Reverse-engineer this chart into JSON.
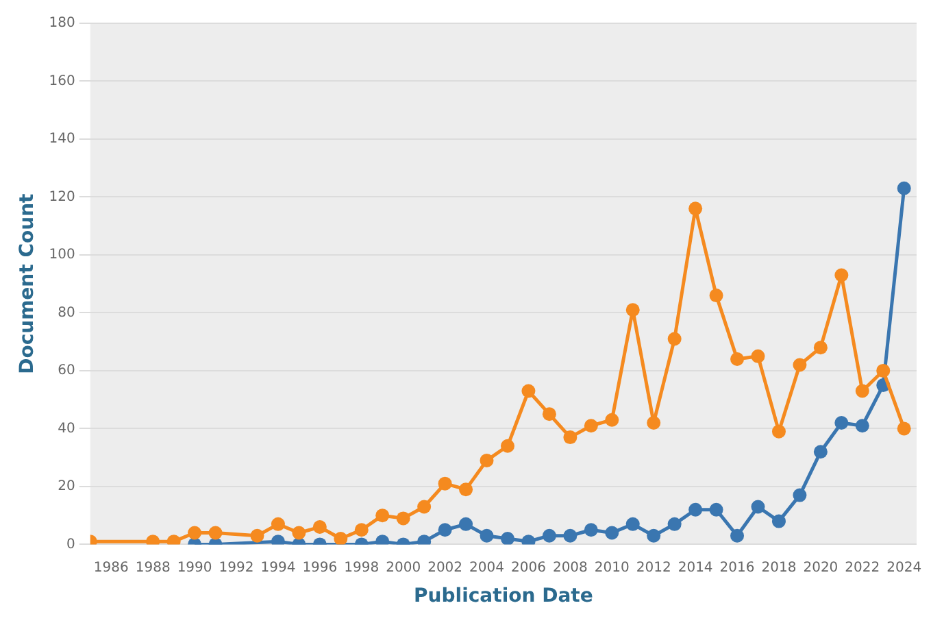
{
  "chart_data": {
    "type": "line",
    "xlabel": "Publication Date",
    "ylabel": "Document Count",
    "xlim": [
      1985,
      2024.6
    ],
    "xticks": [
      1986,
      1988,
      1990,
      1992,
      1994,
      1996,
      1998,
      2000,
      2002,
      2004,
      2006,
      2008,
      2010,
      2012,
      2014,
      2016,
      2018,
      2020,
      2022,
      2024
    ],
    "ylim": [
      0,
      180
    ],
    "yticks": [
      0,
      20,
      40,
      60,
      80,
      100,
      120,
      140,
      160,
      180
    ],
    "grid": "y",
    "legend": false,
    "marker": "circle",
    "line_style": "solid",
    "series": [
      {
        "color": "#f58a1f",
        "x": [
          1985,
          1988,
          1989,
          1990,
          1991,
          1993,
          1994,
          1995,
          1996,
          1997,
          1998,
          1999,
          2000,
          2001,
          2002,
          2003,
          2004,
          2005,
          2006,
          2007,
          2008,
          2009,
          2010,
          2011,
          2012,
          2013,
          2014,
          2015,
          2016,
          2017,
          2018,
          2019,
          2020,
          2021,
          2022,
          2023,
          2024
        ],
        "values": [
          1,
          1,
          1,
          4,
          4,
          3,
          7,
          4,
          6,
          2,
          5,
          10,
          9,
          13,
          21,
          19,
          29,
          34,
          53,
          45,
          37,
          41,
          43,
          81,
          42,
          71,
          116,
          86,
          64,
          65,
          39,
          62,
          68,
          93,
          53,
          60,
          40
        ]
      },
      {
        "color": "#3a76b0",
        "x": [
          1990,
          1991,
          1994,
          1995,
          1996,
          1998,
          1999,
          2000,
          2001,
          2002,
          2003,
          2004,
          2005,
          2006,
          2007,
          2008,
          2009,
          2010,
          2011,
          2012,
          2013,
          2014,
          2015,
          2016,
          2017,
          2018,
          2019,
          2020,
          2021,
          2022,
          2023,
          2024
        ],
        "values": [
          0,
          0,
          1,
          0,
          0,
          0,
          1,
          0,
          1,
          5,
          7,
          3,
          2,
          1,
          3,
          3,
          5,
          4,
          7,
          3,
          7,
          12,
          12,
          3,
          13,
          8,
          17,
          32,
          42,
          41,
          55,
          123
        ]
      }
    ]
  }
}
